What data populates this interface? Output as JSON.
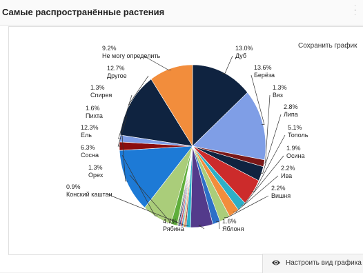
{
  "panel": {
    "title": "Самые распространённые растения",
    "save_label": "Сохранить график",
    "configure_label": "Настроить вид графика",
    "configure_icon": "eye-icon",
    "resize_icon": "resize-handle-icon"
  },
  "chart_data": {
    "type": "pie",
    "title": "",
    "start_category": "Дуб",
    "direction": "clockwise",
    "slices": [
      {
        "name": "Дуб",
        "value": 13.0,
        "label": "13.0%",
        "color": "#0f2340"
      },
      {
        "name": "Берёза",
        "value": 13.6,
        "label": "13.6%",
        "color": "#7f9ee6"
      },
      {
        "name": "Вяз",
        "value": 1.3,
        "label": "1.3%",
        "color": "#7a1717"
      },
      {
        "name": "Липа",
        "value": 2.8,
        "label": "2.8%",
        "color": "#0f2340"
      },
      {
        "name": "Тополь",
        "value": 5.1,
        "label": "5.1%",
        "color": "#cc2b2b"
      },
      {
        "name": "Осина",
        "value": 1.9,
        "label": "1.9%",
        "color": "#2dafc7"
      },
      {
        "name": "Ива",
        "value": 2.2,
        "label": "2.2%",
        "color": "#f28d3c"
      },
      {
        "name": "Вишня",
        "value": 2.2,
        "label": "2.2%",
        "color": "#aacd7a"
      },
      {
        "name": "Яблоня",
        "value": 1.6,
        "label": "1.6%",
        "color": "#2c6fc7"
      },
      {
        "name": "Рябина",
        "value": 4.7,
        "label": "4.7%",
        "color": "#533a8b"
      },
      {
        "name": "Конский каштан",
        "value": 0.9,
        "label": "0.9%",
        "color": "#2dafc7"
      },
      {
        "name": "Орех",
        "value": 1.3,
        "label": "1.3%",
        "color": "#5fae3b"
      },
      {
        "name": "Сосна",
        "value": 6.3,
        "label": "6.3%",
        "color": "#aacd7a"
      },
      {
        "name": "Ель",
        "value": 12.3,
        "label": "12.3%",
        "color": "#1d7ad6"
      },
      {
        "name": "Пихта",
        "value": 1.6,
        "label": "1.6%",
        "color": "#8b0d0d"
      },
      {
        "name": "Спирея",
        "value": 1.3,
        "label": "1.3%",
        "color": "#7f9ee6"
      },
      {
        "name": "Другое",
        "value": 12.7,
        "label": "12.7%",
        "color": "#0f2340"
      },
      {
        "name": "Не могу определить",
        "value": 9.2,
        "label": "9.2%",
        "color": "#f28d3c"
      }
    ],
    "unlabeled_remainder": {
      "value": 2.0,
      "colors": [
        "#7a1717",
        "#f28d3c",
        "#aacd7a",
        "#2c6fc7",
        "#cc2b2b",
        "#533a8b",
        "#0f2340",
        "#aacd7a"
      ]
    }
  }
}
